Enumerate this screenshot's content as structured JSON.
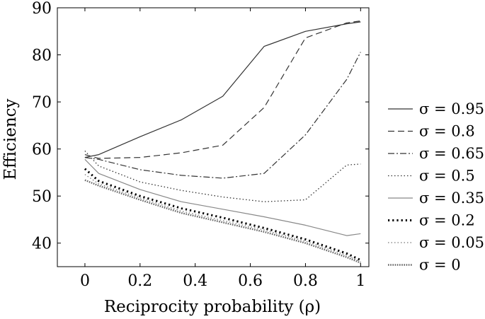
{
  "chart_data": {
    "type": "line",
    "title": "",
    "xlabel": "Reciprocity probability (ρ)",
    "ylabel": "Efficiency",
    "xlim": [
      -0.1,
      1.03
    ],
    "ylim": [
      35,
      90
    ],
    "xticks": [
      0,
      0.2,
      0.4,
      0.6,
      0.8,
      1
    ],
    "xtick_labels": [
      "0",
      "0.2",
      "0.4",
      "0.6",
      "0.8",
      "1"
    ],
    "yticks": [
      40,
      50,
      60,
      70,
      80,
      90
    ],
    "ytick_labels": [
      "40",
      "50",
      "60",
      "70",
      "80",
      "90"
    ],
    "grid": false,
    "legend_position": "right",
    "series": [
      {
        "name": "σ = 0.95",
        "style": "solid",
        "color": "#333333",
        "x": [
          0,
          0.05,
          0.2,
          0.35,
          0.5,
          0.65,
          0.8,
          0.95,
          1
        ],
        "y": [
          58.2,
          58.8,
          62.6,
          66.2,
          71.2,
          81.8,
          85.0,
          86.6,
          87.0
        ]
      },
      {
        "name": "σ = 0.8",
        "style": "dashed",
        "color": "#333333",
        "x": [
          0,
          0.05,
          0.2,
          0.35,
          0.5,
          0.65,
          0.8,
          0.95,
          1
        ],
        "y": [
          58.8,
          58.0,
          58.2,
          59.2,
          60.8,
          68.8,
          83.6,
          86.8,
          87.2
        ]
      },
      {
        "name": "σ = 0.65",
        "style": "dashdot",
        "color": "#333333",
        "x": [
          0,
          0.05,
          0.2,
          0.35,
          0.5,
          0.65,
          0.8,
          0.95,
          1
        ],
        "y": [
          58.2,
          57.8,
          55.6,
          54.4,
          53.8,
          54.8,
          63.0,
          74.8,
          80.6
        ]
      },
      {
        "name": "σ = 0.5",
        "style": "dotted",
        "color": "#333333",
        "x": [
          0,
          0.05,
          0.2,
          0.35,
          0.5,
          0.65,
          0.8,
          0.95,
          1
        ],
        "y": [
          59.6,
          56.4,
          53.0,
          51.2,
          49.8,
          48.8,
          49.2,
          56.6,
          56.8
        ]
      },
      {
        "name": "σ = 0.35",
        "style": "solid",
        "color": "#888888",
        "x": [
          0,
          0.05,
          0.2,
          0.35,
          0.5,
          0.65,
          0.8,
          0.95,
          1
        ],
        "y": [
          57.8,
          54.8,
          51.4,
          48.8,
          47.2,
          45.6,
          43.8,
          41.6,
          42.0
        ]
      },
      {
        "name": "σ = 0.2",
        "style": "dotted-bold",
        "color": "#000000",
        "x": [
          0,
          0.05,
          0.2,
          0.35,
          0.5,
          0.65,
          0.8,
          0.95,
          1
        ],
        "y": [
          55.8,
          53.2,
          50.0,
          47.4,
          45.4,
          43.2,
          40.8,
          37.8,
          36.4
        ]
      },
      {
        "name": "σ = 0.05",
        "style": "dotted",
        "color": "#777777",
        "x": [
          0,
          0.05,
          0.2,
          0.35,
          0.5,
          0.65,
          0.8,
          0.95,
          1
        ],
        "y": [
          54.6,
          52.6,
          49.6,
          46.8,
          44.8,
          42.8,
          40.4,
          37.4,
          36.0
        ]
      },
      {
        "name": "σ = 0",
        "style": "dotted-dense",
        "color": "#666666",
        "x": [
          0,
          0.05,
          0.2,
          0.35,
          0.5,
          0.65,
          0.8,
          0.95,
          1
        ],
        "y": [
          53.4,
          52.2,
          49.2,
          46.4,
          44.4,
          42.4,
          40.0,
          37.0,
          35.8
        ]
      }
    ]
  }
}
